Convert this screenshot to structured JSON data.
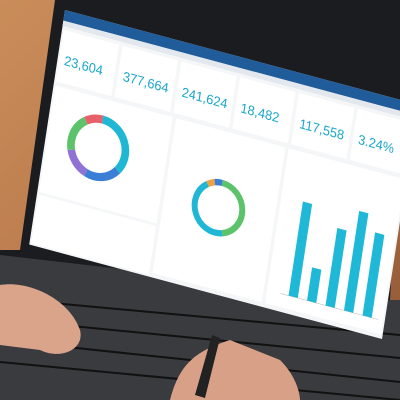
{
  "dashboard": {
    "kpis": [
      "23,604",
      "377,664",
      "241,624",
      "18,482",
      "117,558",
      "3.24%"
    ],
    "donut_1": {
      "values": [
        35,
        20,
        15,
        20,
        10
      ],
      "colors": [
        "#20b7d4",
        "#3a7fd5",
        "#8f72d4",
        "#5cc36a",
        "#e8606a"
      ]
    },
    "donut_2": {
      "values": [
        45,
        45,
        5,
        5
      ],
      "colors": [
        "#5cc36a",
        "#20b7d4",
        "#f0a040",
        "#3a7fd5"
      ]
    },
    "bar_chart": {
      "values": [
        85,
        30,
        70,
        90,
        75
      ],
      "color": "#1fb8d6"
    }
  }
}
